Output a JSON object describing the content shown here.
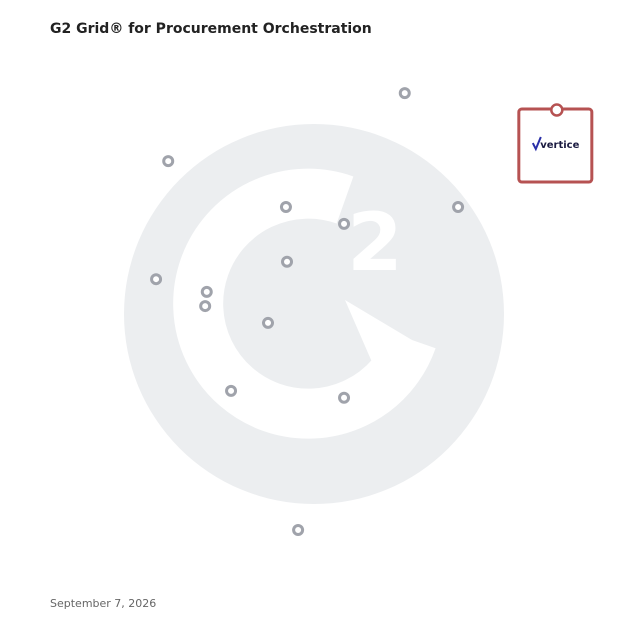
{
  "chart_data": {
    "type": "scatter",
    "title": "G2 Grid® for Procurement Orchestration",
    "date": "September 7, 2026",
    "xlim": [
      0,
      100
    ],
    "ylim": [
      0,
      100
    ],
    "x": [
      67.0,
      22.2,
      44.5,
      77.1,
      55.5,
      44.7,
      19.9,
      29.5,
      29.2,
      41.1,
      34.1,
      55.5,
      46.8
    ],
    "values": [
      92.0,
      79.1,
      70.4,
      70.4,
      67.2,
      60.0,
      56.7,
      54.3,
      51.6,
      48.4,
      35.5,
      34.2,
      9.1
    ],
    "color": "#a0a3ab",
    "highlight": {
      "label": "vertice",
      "x": 95.8,
      "y": 88.8,
      "color": "#b65252"
    }
  }
}
